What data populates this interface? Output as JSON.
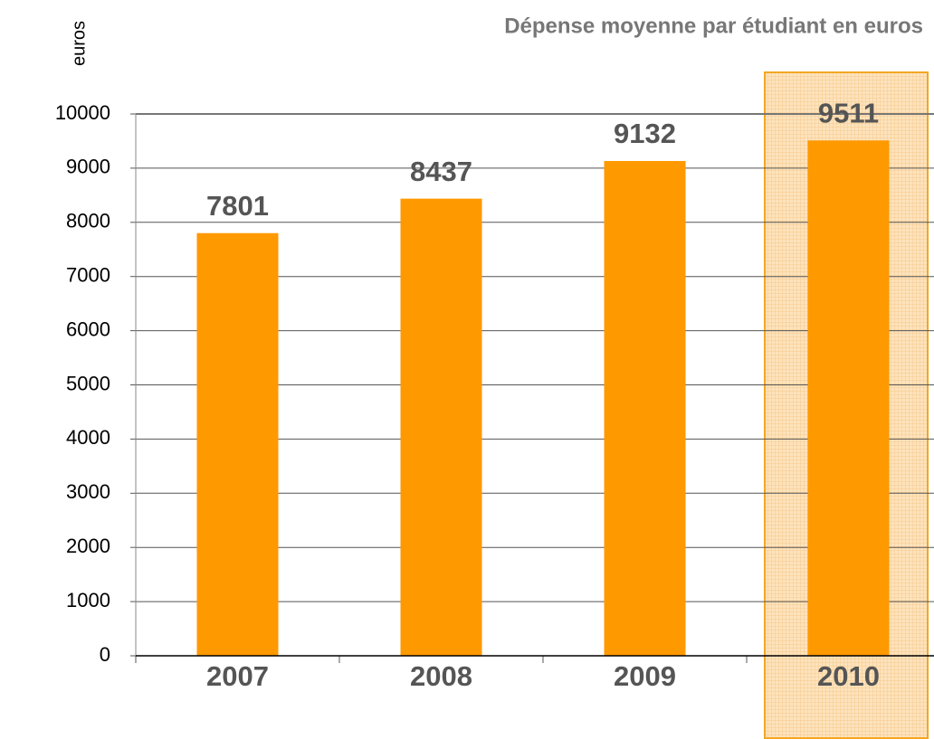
{
  "chart_data": {
    "type": "bar",
    "title": "Dépense moyenne par étudiant en euros",
    "y_label": "euros",
    "categories": [
      "2007",
      "2008",
      "2009",
      "2010"
    ],
    "values": [
      7801,
      8437,
      9132,
      9511
    ],
    "color": "#ff9900",
    "ylim": [
      0,
      10000
    ],
    "yticks": [
      0,
      1000,
      2000,
      3000,
      4000,
      5000,
      6000,
      7000,
      8000,
      9000,
      10000
    ],
    "grid": true
  }
}
